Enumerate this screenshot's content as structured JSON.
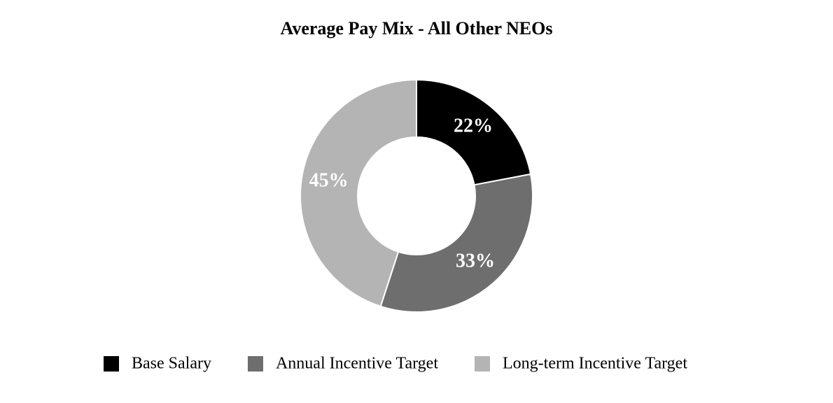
{
  "chart_data": {
    "type": "pie",
    "donut": true,
    "title": "Average Pay Mix - All Other NEOs",
    "categories": [
      "Base Salary",
      "Annual Incentive Target",
      "Long-term Incentive Target"
    ],
    "values": [
      22,
      33,
      45
    ],
    "value_labels": [
      "22%",
      "33%",
      "45%"
    ],
    "colors": [
      "#000000",
      "#6e6e6e",
      "#b4b4b4"
    ],
    "legend": "bottom"
  }
}
